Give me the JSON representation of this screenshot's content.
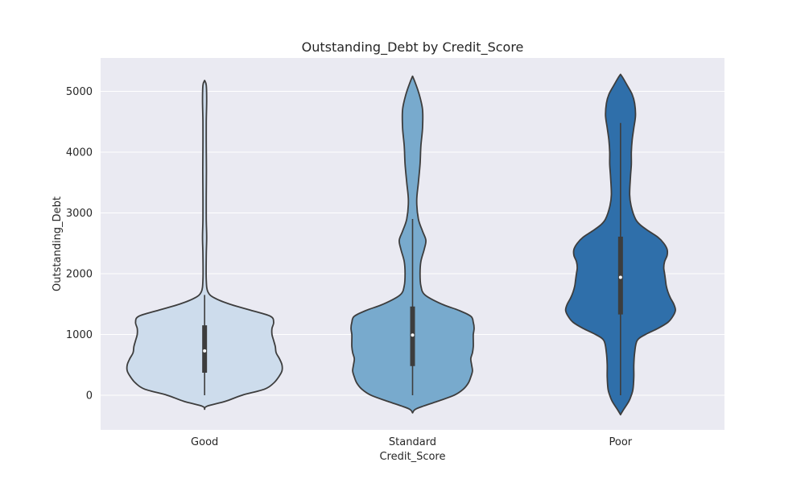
{
  "chart_data": {
    "type": "violin",
    "title": "Outstanding_Debt by Credit_Score",
    "xlabel": "Credit_Score",
    "ylabel": "Outstanding_Debt",
    "categories": [
      "Good",
      "Standard",
      "Poor"
    ],
    "ylim": [
      -570,
      5550
    ],
    "yticks": [
      0,
      1000,
      2000,
      3000,
      4000,
      5000
    ],
    "grid": true,
    "colors": {
      "background": "#eaeaf2",
      "grid": "#ffffff",
      "outline": "#3d3d3d",
      "Good": "#cddcec",
      "Standard": "#78aacd",
      "Poor": "#2f6faa"
    },
    "violins": [
      {
        "category": "Good",
        "density": [
          {
            "y": -230,
            "w": 0.0
          },
          {
            "y": -180,
            "w": 0.03
          },
          {
            "y": -100,
            "w": 0.25
          },
          {
            "y": 0,
            "w": 0.45
          },
          {
            "y": 100,
            "w": 0.72
          },
          {
            "y": 200,
            "w": 0.83
          },
          {
            "y": 300,
            "w": 0.89
          },
          {
            "y": 400,
            "w": 0.93
          },
          {
            "y": 500,
            "w": 0.93
          },
          {
            "y": 600,
            "w": 0.9
          },
          {
            "y": 700,
            "w": 0.86
          },
          {
            "y": 800,
            "w": 0.85
          },
          {
            "y": 900,
            "w": 0.83
          },
          {
            "y": 1000,
            "w": 0.81
          },
          {
            "y": 1100,
            "w": 0.81
          },
          {
            "y": 1200,
            "w": 0.83
          },
          {
            "y": 1300,
            "w": 0.79
          },
          {
            "y": 1400,
            "w": 0.55
          },
          {
            "y": 1500,
            "w": 0.3
          },
          {
            "y": 1600,
            "w": 0.12
          },
          {
            "y": 1700,
            "w": 0.04
          },
          {
            "y": 1900,
            "w": 0.02
          },
          {
            "y": 2300,
            "w": 0.02
          },
          {
            "y": 2600,
            "w": 0.025
          },
          {
            "y": 2900,
            "w": 0.02
          },
          {
            "y": 3300,
            "w": 0.02
          },
          {
            "y": 3700,
            "w": 0.022
          },
          {
            "y": 4100,
            "w": 0.02
          },
          {
            "y": 4500,
            "w": 0.02
          },
          {
            "y": 4850,
            "w": 0.025
          },
          {
            "y": 5100,
            "w": 0.02
          },
          {
            "y": 5180,
            "w": 0.0
          }
        ],
        "whisker_low": 0,
        "q1": 370,
        "median": 730,
        "q3": 1150,
        "whisker_high": 1650
      },
      {
        "category": "Standard",
        "density": [
          {
            "y": -290,
            "w": 0.0
          },
          {
            "y": -220,
            "w": 0.05
          },
          {
            "y": -100,
            "w": 0.3
          },
          {
            "y": 0,
            "w": 0.5
          },
          {
            "y": 100,
            "w": 0.61
          },
          {
            "y": 200,
            "w": 0.67
          },
          {
            "y": 300,
            "w": 0.7
          },
          {
            "y": 400,
            "w": 0.72
          },
          {
            "y": 500,
            "w": 0.71
          },
          {
            "y": 600,
            "w": 0.7
          },
          {
            "y": 700,
            "w": 0.72
          },
          {
            "y": 800,
            "w": 0.73
          },
          {
            "y": 900,
            "w": 0.73
          },
          {
            "y": 1000,
            "w": 0.73
          },
          {
            "y": 1100,
            "w": 0.74
          },
          {
            "y": 1200,
            "w": 0.73
          },
          {
            "y": 1300,
            "w": 0.7
          },
          {
            "y": 1400,
            "w": 0.55
          },
          {
            "y": 1500,
            "w": 0.35
          },
          {
            "y": 1650,
            "w": 0.15
          },
          {
            "y": 1800,
            "w": 0.1
          },
          {
            "y": 2000,
            "w": 0.09
          },
          {
            "y": 2200,
            "w": 0.1
          },
          {
            "y": 2400,
            "w": 0.14
          },
          {
            "y": 2550,
            "w": 0.16
          },
          {
            "y": 2700,
            "w": 0.12
          },
          {
            "y": 2900,
            "w": 0.07
          },
          {
            "y": 3200,
            "w": 0.05
          },
          {
            "y": 3500,
            "w": 0.07
          },
          {
            "y": 3800,
            "w": 0.09
          },
          {
            "y": 4100,
            "w": 0.1
          },
          {
            "y": 4400,
            "w": 0.12
          },
          {
            "y": 4700,
            "w": 0.12
          },
          {
            "y": 4950,
            "w": 0.08
          },
          {
            "y": 5150,
            "w": 0.03
          },
          {
            "y": 5250,
            "w": 0.0
          }
        ],
        "whisker_low": 0,
        "q1": 480,
        "median": 990,
        "q3": 1460,
        "whisker_high": 2900
      },
      {
        "category": "Poor",
        "density": [
          {
            "y": -320,
            "w": 0.0
          },
          {
            "y": -250,
            "w": 0.03
          },
          {
            "y": -100,
            "w": 0.1
          },
          {
            "y": 0,
            "w": 0.13
          },
          {
            "y": 100,
            "w": 0.15
          },
          {
            "y": 300,
            "w": 0.16
          },
          {
            "y": 500,
            "w": 0.16
          },
          {
            "y": 700,
            "w": 0.17
          },
          {
            "y": 900,
            "w": 0.2
          },
          {
            "y": 1000,
            "w": 0.3
          },
          {
            "y": 1100,
            "w": 0.45
          },
          {
            "y": 1200,
            "w": 0.57
          },
          {
            "y": 1300,
            "w": 0.63
          },
          {
            "y": 1400,
            "w": 0.66
          },
          {
            "y": 1500,
            "w": 0.64
          },
          {
            "y": 1600,
            "w": 0.6
          },
          {
            "y": 1700,
            "w": 0.57
          },
          {
            "y": 1800,
            "w": 0.55
          },
          {
            "y": 1900,
            "w": 0.54
          },
          {
            "y": 2000,
            "w": 0.53
          },
          {
            "y": 2100,
            "w": 0.52
          },
          {
            "y": 2200,
            "w": 0.53
          },
          {
            "y": 2300,
            "w": 0.56
          },
          {
            "y": 2400,
            "w": 0.56
          },
          {
            "y": 2500,
            "w": 0.52
          },
          {
            "y": 2600,
            "w": 0.45
          },
          {
            "y": 2700,
            "w": 0.34
          },
          {
            "y": 2800,
            "w": 0.24
          },
          {
            "y": 2900,
            "w": 0.18
          },
          {
            "y": 3100,
            "w": 0.13
          },
          {
            "y": 3300,
            "w": 0.11
          },
          {
            "y": 3600,
            "w": 0.12
          },
          {
            "y": 3800,
            "w": 0.13
          },
          {
            "y": 4000,
            "w": 0.13
          },
          {
            "y": 4200,
            "w": 0.14
          },
          {
            "y": 4400,
            "w": 0.16
          },
          {
            "y": 4600,
            "w": 0.18
          },
          {
            "y": 4800,
            "w": 0.17
          },
          {
            "y": 4950,
            "w": 0.14
          },
          {
            "y": 5100,
            "w": 0.08
          },
          {
            "y": 5220,
            "w": 0.03
          },
          {
            "y": 5280,
            "w": 0.0
          }
        ],
        "whisker_low": 0,
        "q1": 1330,
        "median": 1940,
        "q3": 2610,
        "whisker_high": 4480
      }
    ]
  }
}
